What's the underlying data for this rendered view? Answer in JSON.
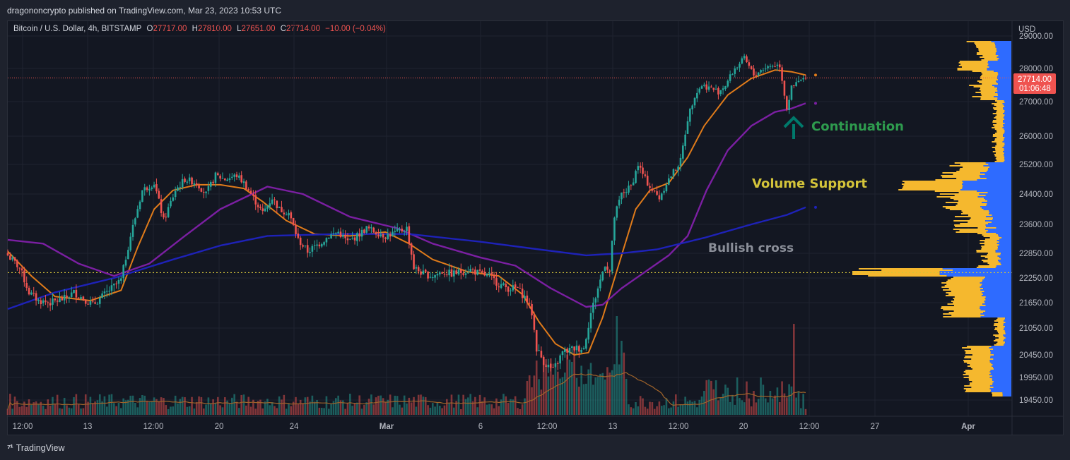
{
  "header": {
    "published_line": "dragononcrypto published on TradingView.com, Mar 23, 2023 10:53 UTC"
  },
  "legend": {
    "symbol": "Bitcoin / U.S. Dollar, 4h, BITSTAMP",
    "o_label": "O",
    "o_value": "27717.00",
    "h_label": "H",
    "h_value": "27810.00",
    "l_label": "L",
    "l_value": "27651.00",
    "c_label": "C",
    "c_value": "27714.00",
    "change": "−10.00 (−0.04%)"
  },
  "footer": {
    "brand": "TradingView"
  },
  "chart_data": {
    "type": "candlestick",
    "currency_label": "USD",
    "price_labels": [
      "29000.00",
      "28000.00",
      "27000.00",
      "26000.00",
      "25200.00",
      "24400.00",
      "23600.00",
      "22850.00",
      "22250.00",
      "21650.00",
      "21050.00",
      "20450.00",
      "19950.00",
      "19450.00"
    ],
    "price_ticks": [
      29000,
      28000,
      27000,
      26000,
      25200,
      24400,
      23600,
      22850,
      22250,
      21650,
      21050,
      20450,
      19950,
      19450
    ],
    "time_labels": [
      "12:00",
      "13",
      "12:00",
      "20",
      "24",
      "Mar",
      "6",
      "12:00",
      "13",
      "12:00",
      "20",
      "12:00",
      "27",
      "Apr"
    ],
    "last_price": {
      "value": 27714,
      "label": "27714.00",
      "countdown": "01:06:48"
    },
    "dotted_level": 22380,
    "annotations": {
      "continuation": "Continuation",
      "volume_support": "Volume Support",
      "bullish_cross": "Bullish cross"
    },
    "close_path": [
      [
        0,
        22800
      ],
      [
        5,
        22500
      ],
      [
        9,
        21900
      ],
      [
        13,
        21700
      ],
      [
        18,
        21650
      ],
      [
        24,
        21750
      ],
      [
        28,
        21900
      ],
      [
        32,
        21750
      ],
      [
        36,
        21600
      ],
      [
        42,
        21900
      ],
      [
        48,
        22200
      ],
      [
        52,
        23300
      ],
      [
        57,
        24500
      ],
      [
        62,
        24700
      ],
      [
        66,
        23700
      ],
      [
        71,
        24500
      ],
      [
        75,
        24800
      ],
      [
        80,
        24700
      ],
      [
        84,
        24400
      ],
      [
        88,
        24900
      ],
      [
        92,
        24800
      ],
      [
        97,
        24900
      ],
      [
        100,
        24700
      ],
      [
        104,
        24300
      ],
      [
        108,
        23900
      ],
      [
        112,
        24300
      ],
      [
        115,
        24000
      ],
      [
        119,
        23900
      ],
      [
        123,
        23200
      ],
      [
        127,
        22900
      ],
      [
        132,
        23100
      ],
      [
        136,
        23300
      ],
      [
        140,
        23400
      ],
      [
        144,
        23150
      ],
      [
        148,
        23300
      ],
      [
        152,
        23500
      ],
      [
        156,
        23400
      ],
      [
        160,
        23300
      ],
      [
        165,
        23400
      ],
      [
        169,
        23500
      ],
      [
        172,
        22500
      ],
      [
        176,
        22350
      ],
      [
        180,
        22300
      ],
      [
        184,
        22400
      ],
      [
        188,
        22350
      ],
      [
        192,
        22400
      ],
      [
        196,
        22450
      ],
      [
        200,
        22350
      ],
      [
        204,
        22300
      ],
      [
        208,
        22100
      ],
      [
        212,
        22000
      ],
      [
        216,
        22000
      ],
      [
        220,
        21700
      ],
      [
        222,
        21400
      ],
      [
        224,
        20600
      ],
      [
        227,
        20300
      ],
      [
        231,
        20100
      ],
      [
        235,
        20500
      ],
      [
        240,
        20600
      ],
      [
        244,
        20600
      ],
      [
        247,
        21400
      ],
      [
        250,
        22000
      ],
      [
        253,
        22600
      ],
      [
        255,
        22400
      ],
      [
        257,
        23800
      ],
      [
        260,
        24400
      ],
      [
        264,
        24600
      ],
      [
        267,
        25200
      ],
      [
        270,
        24800
      ],
      [
        273,
        24500
      ],
      [
        276,
        24300
      ],
      [
        279,
        24700
      ],
      [
        282,
        25000
      ],
      [
        285,
        25300
      ],
      [
        288,
        26500
      ],
      [
        291,
        27200
      ],
      [
        294,
        27500
      ],
      [
        298,
        27400
      ],
      [
        301,
        27300
      ],
      [
        304,
        27500
      ],
      [
        308,
        28000
      ],
      [
        312,
        28300
      ],
      [
        316,
        27800
      ],
      [
        320,
        28000
      ],
      [
        324,
        28100
      ],
      [
        327,
        28100
      ],
      [
        330,
        26800
      ],
      [
        332,
        27400
      ],
      [
        335,
        27600
      ],
      [
        338,
        27714
      ]
    ],
    "moving_averages": [
      {
        "name": "",
        "color": "#e07b1a",
        "points": [
          [
            0,
            22900
          ],
          [
            10,
            22300
          ],
          [
            20,
            21800
          ],
          [
            35,
            21700
          ],
          [
            48,
            21950
          ],
          [
            55,
            23000
          ],
          [
            62,
            24000
          ],
          [
            70,
            24500
          ],
          [
            80,
            24650
          ],
          [
            90,
            24650
          ],
          [
            100,
            24550
          ],
          [
            108,
            24200
          ],
          [
            118,
            23700
          ],
          [
            130,
            23350
          ],
          [
            145,
            23300
          ],
          [
            160,
            23400
          ],
          [
            170,
            23100
          ],
          [
            180,
            22700
          ],
          [
            195,
            22400
          ],
          [
            208,
            22300
          ],
          [
            218,
            21850
          ],
          [
            225,
            21200
          ],
          [
            232,
            20700
          ],
          [
            240,
            20450
          ],
          [
            246,
            20500
          ],
          [
            252,
            21300
          ],
          [
            260,
            22800
          ],
          [
            266,
            24000
          ],
          [
            272,
            24500
          ],
          [
            280,
            24700
          ],
          [
            288,
            25400
          ],
          [
            295,
            26300
          ],
          [
            305,
            27200
          ],
          [
            315,
            27700
          ],
          [
            325,
            27950
          ],
          [
            332,
            27900
          ],
          [
            338,
            27800
          ]
        ]
      },
      {
        "name": "",
        "color": "#7b1fa2",
        "points": [
          [
            0,
            23200
          ],
          [
            15,
            23100
          ],
          [
            30,
            22600
          ],
          [
            45,
            22300
          ],
          [
            60,
            22600
          ],
          [
            75,
            23300
          ],
          [
            90,
            24000
          ],
          [
            110,
            24600
          ],
          [
            125,
            24400
          ],
          [
            145,
            23800
          ],
          [
            165,
            23500
          ],
          [
            180,
            23100
          ],
          [
            200,
            22750
          ],
          [
            215,
            22550
          ],
          [
            230,
            22000
          ],
          [
            245,
            21550
          ],
          [
            252,
            21600
          ],
          [
            260,
            22000
          ],
          [
            270,
            22400
          ],
          [
            280,
            22800
          ],
          [
            288,
            23300
          ],
          [
            296,
            24500
          ],
          [
            305,
            25600
          ],
          [
            315,
            26300
          ],
          [
            325,
            26700
          ],
          [
            332,
            26800
          ],
          [
            338,
            26950
          ]
        ]
      },
      {
        "name": "",
        "color": "#1e22b8",
        "points": [
          [
            0,
            21500
          ],
          [
            20,
            21900
          ],
          [
            45,
            22250
          ],
          [
            70,
            22700
          ],
          [
            90,
            23050
          ],
          [
            110,
            23300
          ],
          [
            140,
            23350
          ],
          [
            170,
            23350
          ],
          [
            200,
            23150
          ],
          [
            225,
            22950
          ],
          [
            245,
            22800
          ],
          [
            260,
            22850
          ],
          [
            275,
            22950
          ],
          [
            295,
            23250
          ],
          [
            315,
            23600
          ],
          [
            330,
            23850
          ],
          [
            338,
            24050
          ]
        ]
      }
    ]
  }
}
